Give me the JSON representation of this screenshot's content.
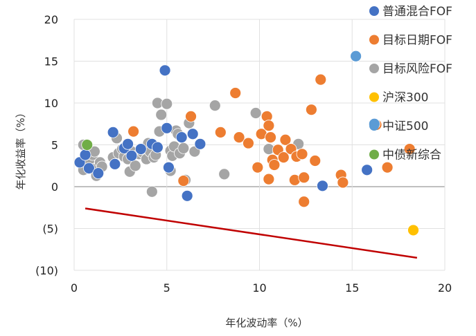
{
  "chart_data": {
    "type": "scatter",
    "title": "",
    "xlabel": "年化波动率（%）",
    "ylabel": "年化收益率（%）",
    "xlim": [
      0,
      20
    ],
    "ylim": [
      -10,
      20
    ],
    "x_ticks": [
      0,
      5,
      10,
      15,
      20
    ],
    "x_tick_labels": [
      "0",
      "5",
      "10",
      "15",
      "20"
    ],
    "y_ticks": [
      20,
      15,
      10,
      5,
      0,
      -5,
      -10
    ],
    "y_tick_labels": [
      "20",
      "15",
      "10",
      "5",
      "0",
      "(5)",
      "(10)"
    ],
    "grid": {
      "horizontal": true,
      "vertical": true,
      "zero_line": true
    },
    "legend_position": "right",
    "series": [
      {
        "name": "普通混合FOF",
        "color": "#4472C4",
        "points": [
          [
            0.3,
            2.9
          ],
          [
            0.6,
            3.8
          ],
          [
            0.8,
            2.2
          ],
          [
            1.3,
            1.6
          ],
          [
            2.1,
            6.5
          ],
          [
            2.2,
            2.7
          ],
          [
            2.7,
            4.6
          ],
          [
            2.9,
            5.1
          ],
          [
            3.1,
            3.7
          ],
          [
            3.6,
            4.5
          ],
          [
            4.2,
            5.1
          ],
          [
            4.5,
            4.7
          ],
          [
            4.9,
            13.9
          ],
          [
            5.0,
            7.0
          ],
          [
            5.1,
            2.3
          ],
          [
            5.8,
            5.9
          ],
          [
            6.4,
            6.3
          ],
          [
            6.1,
            -1.1
          ],
          [
            6.8,
            5.1
          ],
          [
            13.4,
            0.1
          ],
          [
            15.8,
            2.0
          ]
        ]
      },
      {
        "name": "目标日期FOF",
        "color": "#ED7D31",
        "points": [
          [
            3.2,
            6.6
          ],
          [
            5.9,
            0.7
          ],
          [
            6.3,
            8.4
          ],
          [
            7.9,
            6.5
          ],
          [
            8.7,
            11.2
          ],
          [
            8.9,
            5.9
          ],
          [
            9.4,
            5.2
          ],
          [
            9.9,
            2.3
          ],
          [
            10.1,
            6.3
          ],
          [
            10.4,
            8.4
          ],
          [
            10.5,
            7.3
          ],
          [
            10.6,
            5.9
          ],
          [
            10.5,
            0.9
          ],
          [
            10.7,
            3.2
          ],
          [
            10.8,
            2.6
          ],
          [
            11.0,
            4.4
          ],
          [
            11.3,
            3.5
          ],
          [
            11.4,
            5.6
          ],
          [
            11.7,
            4.5
          ],
          [
            11.9,
            0.8
          ],
          [
            12.0,
            3.6
          ],
          [
            12.3,
            3.9
          ],
          [
            12.4,
            1.1
          ],
          [
            12.4,
            -1.8
          ],
          [
            12.8,
            9.2
          ],
          [
            13.0,
            3.1
          ],
          [
            13.3,
            12.8
          ],
          [
            14.4,
            1.4
          ],
          [
            14.5,
            0.5
          ],
          [
            16.3,
            7.4
          ],
          [
            16.9,
            2.3
          ],
          [
            18.1,
            4.5
          ]
        ]
      },
      {
        "name": "目标风险FOF",
        "color": "#A5A5A5",
        "points": [
          [
            0.5,
            5.0
          ],
          [
            0.5,
            2.0
          ],
          [
            0.8,
            3.1
          ],
          [
            1.0,
            3.8
          ],
          [
            1.0,
            2.1
          ],
          [
            1.1,
            4.2
          ],
          [
            1.2,
            1.3
          ],
          [
            1.4,
            2.9
          ],
          [
            1.5,
            2.4
          ],
          [
            2.1,
            3.5
          ],
          [
            2.3,
            5.8
          ],
          [
            2.4,
            4.0
          ],
          [
            2.6,
            4.5
          ],
          [
            2.7,
            3.6
          ],
          [
            2.9,
            3.3
          ],
          [
            3.0,
            1.8
          ],
          [
            3.1,
            4.2
          ],
          [
            3.3,
            2.5
          ],
          [
            3.5,
            3.9
          ],
          [
            3.7,
            4.1
          ],
          [
            3.9,
            3.3
          ],
          [
            4.0,
            5.2
          ],
          [
            4.1,
            4.2
          ],
          [
            4.2,
            -0.6
          ],
          [
            4.3,
            3.5
          ],
          [
            4.4,
            3.8
          ],
          [
            4.5,
            10.0
          ],
          [
            4.6,
            6.6
          ],
          [
            4.7,
            8.6
          ],
          [
            5.0,
            9.9
          ],
          [
            5.2,
            4.3
          ],
          [
            5.2,
            1.9
          ],
          [
            5.3,
            3.7
          ],
          [
            5.4,
            4.8
          ],
          [
            5.5,
            6.7
          ],
          [
            5.6,
            6.3
          ],
          [
            5.7,
            4.0
          ],
          [
            5.9,
            4.6
          ],
          [
            6.0,
            0.8
          ],
          [
            6.2,
            7.6
          ],
          [
            6.5,
            4.2
          ],
          [
            7.6,
            9.7
          ],
          [
            8.1,
            1.5
          ],
          [
            9.8,
            8.8
          ],
          [
            10.5,
            4.5
          ],
          [
            12.1,
            5.1
          ]
        ]
      },
      {
        "name": "沪深300",
        "color": "#FFC000",
        "points": [
          [
            18.3,
            -5.2
          ]
        ]
      },
      {
        "name": "中证500",
        "color": "#5B9BD5",
        "points": [
          [
            15.2,
            15.6
          ],
          [
            16.2,
            7.5
          ]
        ]
      },
      {
        "name": "中债新综合",
        "color": "#70AD47",
        "points": [
          [
            0.7,
            5.0
          ]
        ]
      }
    ],
    "trendline": {
      "color": "#C00000",
      "points": [
        [
          0.6,
          -2.6
        ],
        [
          18.5,
          -8.5
        ]
      ]
    }
  }
}
